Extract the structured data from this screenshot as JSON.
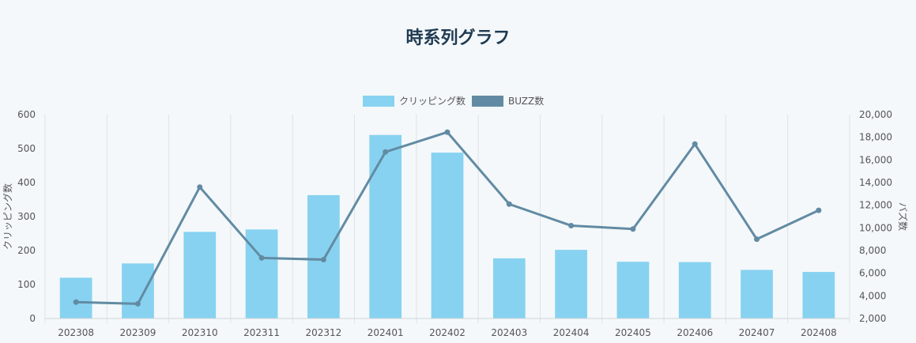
{
  "title": "時系列グラフ",
  "chart_data": {
    "type": "bar+line",
    "categories": [
      "202308",
      "202309",
      "202310",
      "202311",
      "202312",
      "202401",
      "202402",
      "202403",
      "202404",
      "202405",
      "202406",
      "202407",
      "202408"
    ],
    "series": [
      {
        "name": "クリッピング数",
        "type": "bar",
        "axis": "left",
        "color": "#87d2f0",
        "values": [
          120,
          162,
          255,
          262,
          363,
          540,
          488,
          177,
          202,
          167,
          166,
          143,
          137
        ]
      },
      {
        "name": "BUZZ数",
        "type": "line",
        "axis": "right",
        "color": "#628ba3",
        "values": [
          3450,
          3300,
          13600,
          7350,
          7200,
          16700,
          18450,
          12100,
          10200,
          9900,
          17400,
          9000,
          11550
        ]
      }
    ],
    "ylabel_left": "クリッピング数",
    "ylabel_right": "バズ数",
    "ylim_left": [
      0,
      600
    ],
    "ylim_right": [
      2000,
      20000
    ],
    "yticks_left": [
      0,
      100,
      200,
      300,
      400,
      500,
      600
    ],
    "yticks_right": [
      "2,000",
      "4,000",
      "6,000",
      "8,000",
      "10,000",
      "12,000",
      "14,000",
      "16,000",
      "18,000",
      "20,000"
    ],
    "legend_position": "top-center",
    "grid": "vertical"
  }
}
